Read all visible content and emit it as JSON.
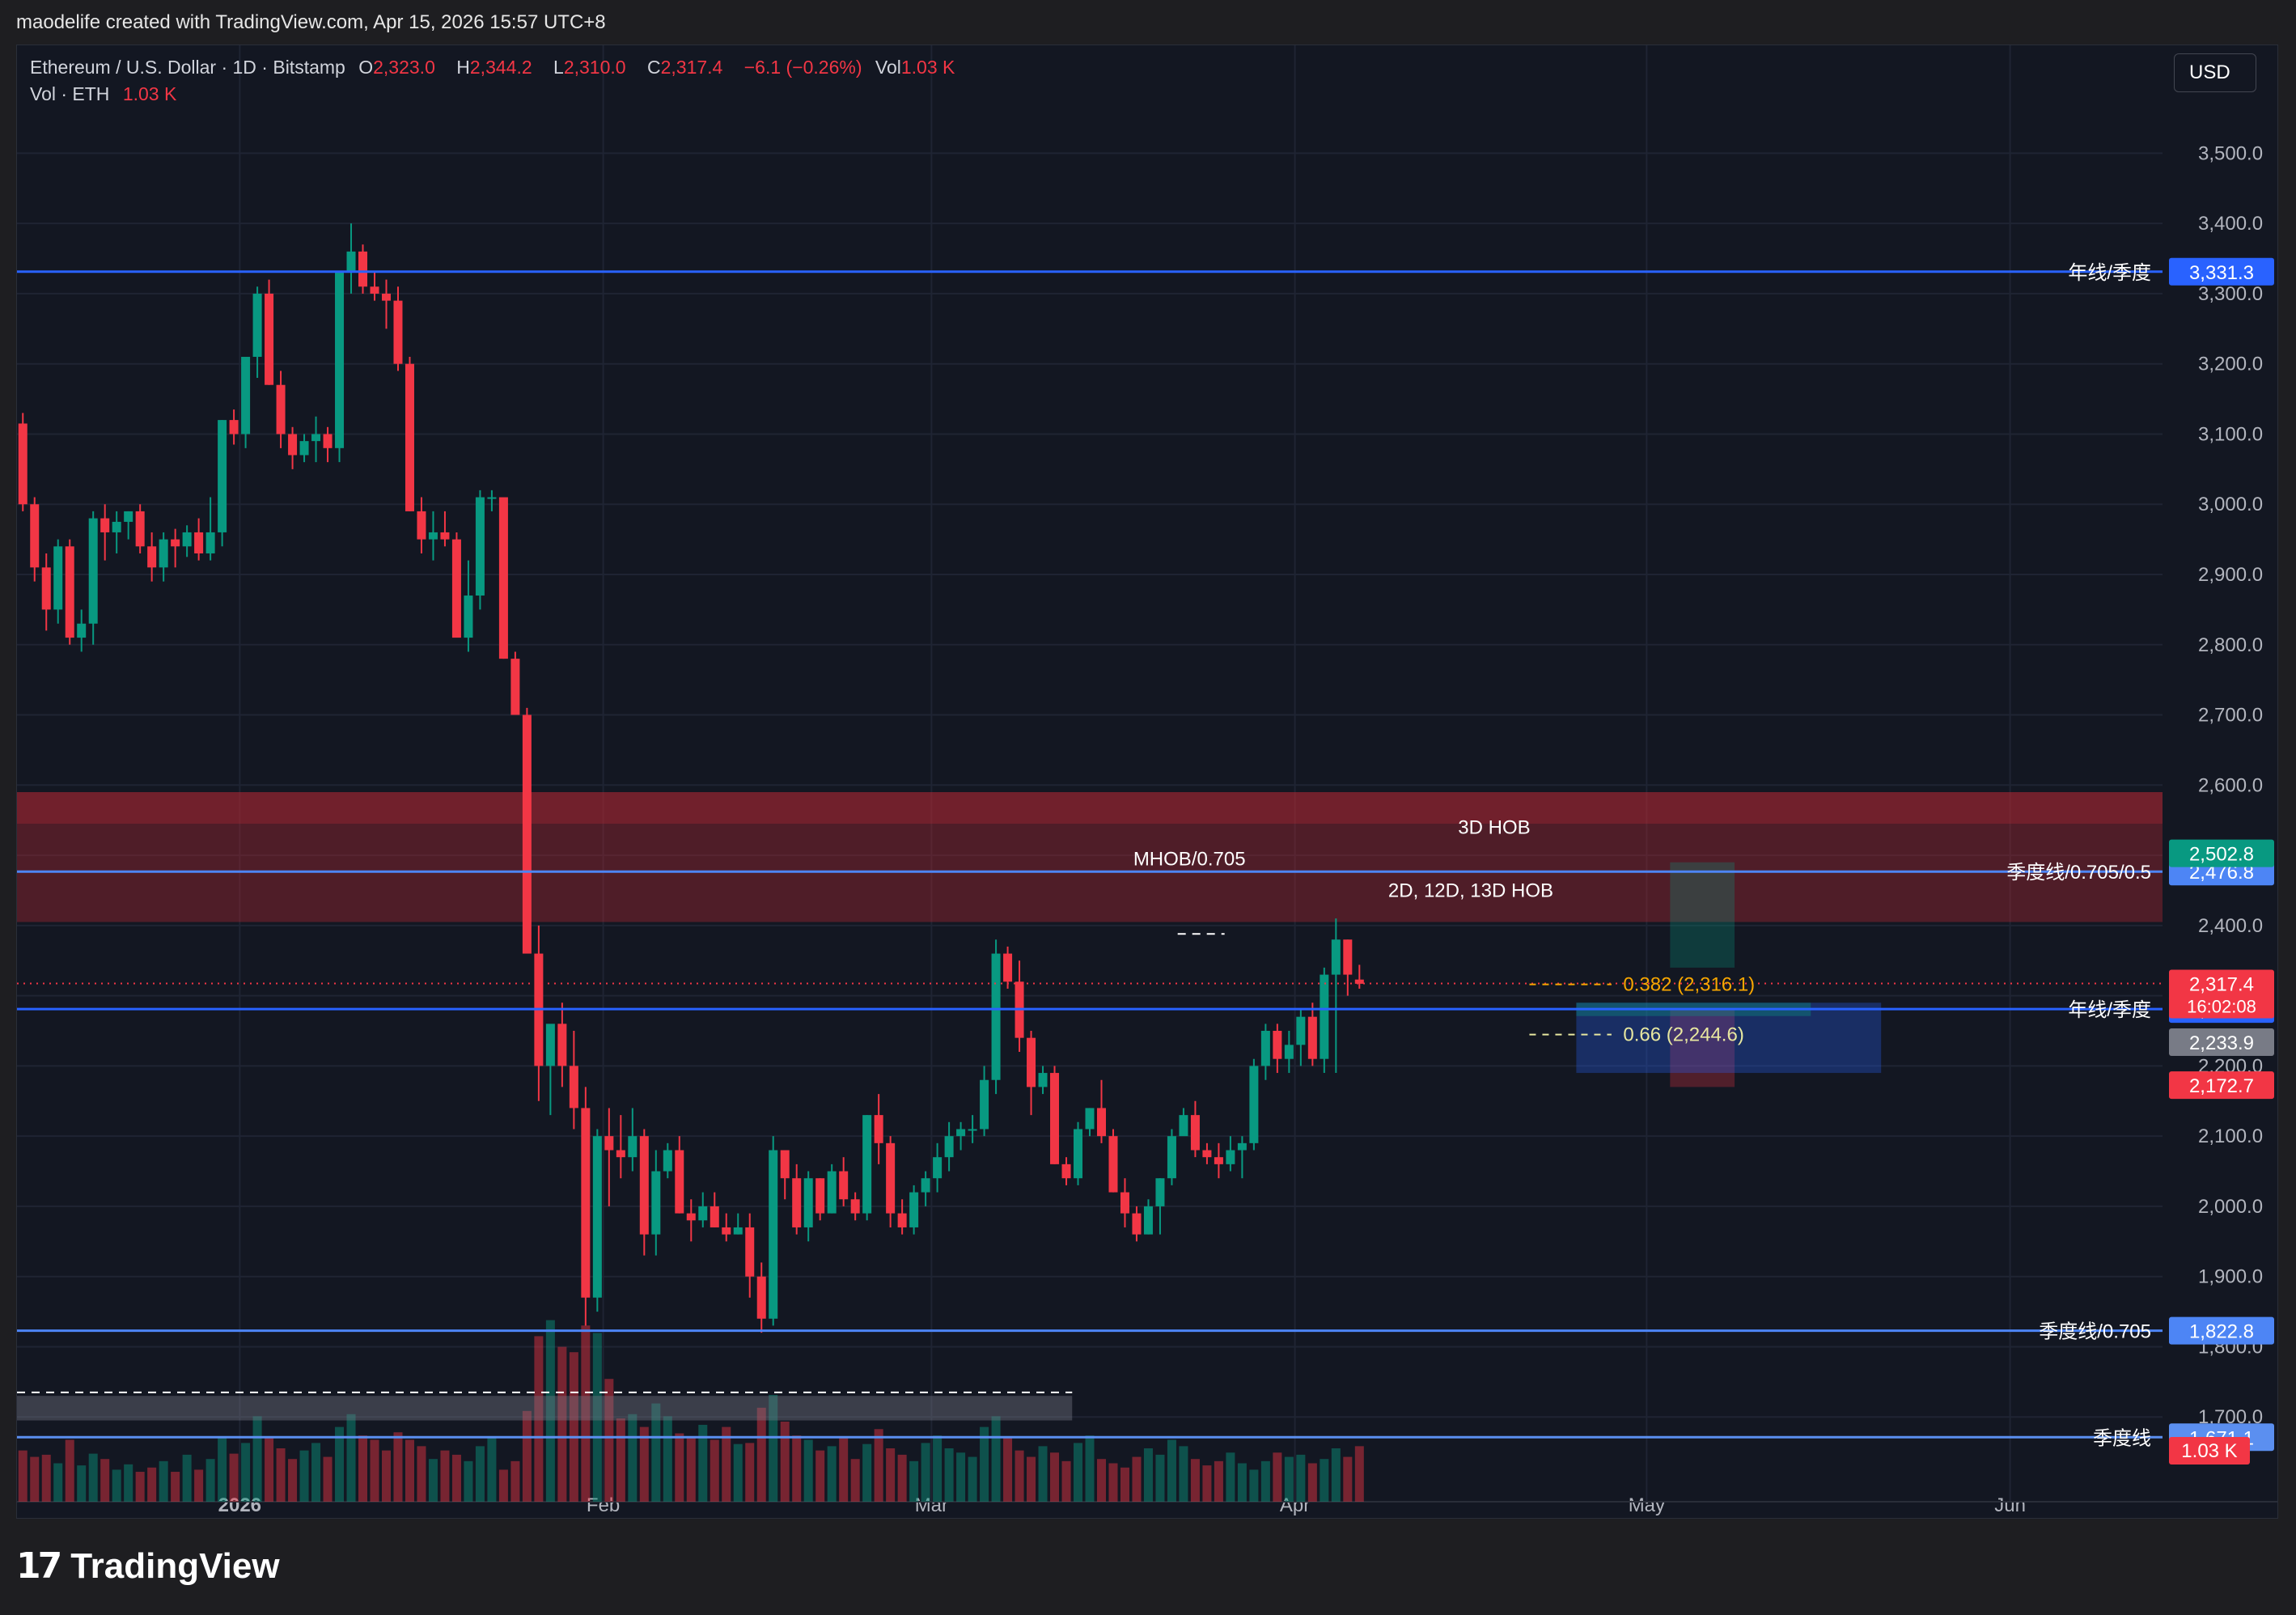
{
  "header": {
    "text": "maodelife created with TradingView.com, Apr 15, 2026 15:57 UTC+8"
  },
  "legend": {
    "symbol": "Ethereum / U.S. Dollar · 1D · Bitstamp",
    "o_label": "O",
    "o_value": "2,323.0",
    "h_label": "H",
    "h_value": "2,344.2",
    "l_label": "L",
    "l_value": "2,310.0",
    "c_label": "C",
    "c_value": "2,317.4",
    "change": "−6.1 (−0.26%)",
    "vol_label": "Vol",
    "vol_value": "1.03 K",
    "vol_row_label": "Vol · ETH",
    "vol_row_value": "1.03 K"
  },
  "currency_button": "USD",
  "footer": {
    "brand": "TradingView"
  },
  "colors": {
    "background": "#131722",
    "up": "#089981",
    "down": "#f23645",
    "blue_line": "#2962ff",
    "zone": "#b22833"
  },
  "chart_data": {
    "type": "candlestick",
    "symbol": "ETHUSD",
    "timeframe": "1D",
    "ylim": [
      1600,
      3550
    ],
    "y_ticks": [
      "3,500.0",
      "3,400.0",
      "3,300.0",
      "3,200.0",
      "3,100.0",
      "3,000.0",
      "2,900.0",
      "2,800.0",
      "2,700.0",
      "2,600.0",
      "2,500.0",
      "2,400.0",
      "2,300.0",
      "2,200.0",
      "2,100.0",
      "2,000.0",
      "1,900.0",
      "1,800.0",
      "1,700.0"
    ],
    "x_ticks": [
      {
        "label": "2026",
        "day": 0
      },
      {
        "label": "Feb",
        "day": 31
      },
      {
        "label": "Mar",
        "day": 59
      },
      {
        "label": "Apr",
        "day": 90
      },
      {
        "label": "May",
        "day": 120
      },
      {
        "label": "Jun",
        "day": 151
      }
    ],
    "first_day": -19,
    "last_day": 164,
    "candles": [
      [
        3115,
        3130,
        2990,
        3000
      ],
      [
        3000,
        3010,
        2890,
        2910
      ],
      [
        2910,
        2930,
        2820,
        2850
      ],
      [
        2850,
        2950,
        2830,
        2940
      ],
      [
        2940,
        2950,
        2800,
        2810
      ],
      [
        2810,
        2850,
        2790,
        2830
      ],
      [
        2830,
        2990,
        2800,
        2980
      ],
      [
        2980,
        3000,
        2920,
        2960
      ],
      [
        2960,
        2990,
        2930,
        2975
      ],
      [
        2975,
        2990,
        2950,
        2990
      ],
      [
        2990,
        3000,
        2930,
        2940
      ],
      [
        2940,
        2960,
        2890,
        2910
      ],
      [
        2910,
        2960,
        2890,
        2950
      ],
      [
        2950,
        2965,
        2910,
        2940
      ],
      [
        2940,
        2970,
        2925,
        2960
      ],
      [
        2960,
        2980,
        2920,
        2930
      ],
      [
        2930,
        3010,
        2920,
        2960
      ],
      [
        2960,
        3120,
        2940,
        3120
      ],
      [
        3120,
        3135,
        3085,
        3100
      ],
      [
        3100,
        3200,
        3080,
        3210
      ],
      [
        3210,
        3310,
        3180,
        3300
      ],
      [
        3300,
        3320,
        3170,
        3170
      ],
      [
        3170,
        3190,
        3080,
        3100
      ],
      [
        3100,
        3110,
        3050,
        3070
      ],
      [
        3070,
        3100,
        3060,
        3090
      ],
      [
        3090,
        3125,
        3060,
        3100
      ],
      [
        3100,
        3110,
        3060,
        3080
      ],
      [
        3080,
        3330,
        3060,
        3330
      ],
      [
        3330,
        3400,
        3300,
        3360
      ],
      [
        3360,
        3370,
        3300,
        3310
      ],
      [
        3310,
        3330,
        3290,
        3300
      ],
      [
        3300,
        3320,
        3250,
        3290
      ],
      [
        3290,
        3310,
        3190,
        3200
      ],
      [
        3200,
        3210,
        2990,
        2990
      ],
      [
        2990,
        3010,
        2930,
        2950
      ],
      [
        2950,
        2990,
        2920,
        2960
      ],
      [
        2960,
        2990,
        2940,
        2950
      ],
      [
        2950,
        2960,
        2820,
        2810
      ],
      [
        2810,
        2920,
        2790,
        2870
      ],
      [
        2870,
        3020,
        2850,
        3010
      ],
      [
        3010,
        3020,
        2990,
        3010
      ],
      [
        3010,
        3000,
        2780,
        2780
      ],
      [
        2780,
        2790,
        2700,
        2700
      ],
      [
        2700,
        2710,
        2360,
        2360
      ],
      [
        2360,
        2400,
        2150,
        2200
      ],
      [
        2200,
        2250,
        2130,
        2260
      ],
      [
        2260,
        2290,
        2170,
        2200
      ],
      [
        2200,
        2250,
        2110,
        2140
      ],
      [
        2140,
        2170,
        1830,
        1870
      ],
      [
        1870,
        2110,
        1850,
        2100
      ],
      [
        2100,
        2140,
        2000,
        2080
      ],
      [
        2080,
        2130,
        2040,
        2070
      ],
      [
        2070,
        2140,
        2050,
        2100
      ],
      [
        2100,
        2110,
        1930,
        1960
      ],
      [
        1960,
        2080,
        1930,
        2050
      ],
      [
        2050,
        2090,
        2040,
        2080
      ],
      [
        2080,
        2100,
        1990,
        1990
      ],
      [
        1990,
        2010,
        1950,
        1980
      ],
      [
        1980,
        2020,
        1970,
        2000
      ],
      [
        2000,
        2020,
        1970,
        1970
      ],
      [
        1970,
        1990,
        1950,
        1960
      ],
      [
        1960,
        1990,
        1960,
        1970
      ],
      [
        1970,
        1990,
        1870,
        1900
      ],
      [
        1900,
        1920,
        1820,
        1840
      ],
      [
        1840,
        2100,
        1830,
        2080
      ],
      [
        2080,
        2080,
        2010,
        2040
      ],
      [
        2040,
        2060,
        1960,
        1970
      ],
      [
        1970,
        2050,
        1950,
        2040
      ],
      [
        2040,
        2040,
        1980,
        1990
      ],
      [
        1990,
        2060,
        1990,
        2050
      ],
      [
        2050,
        2070,
        2000,
        2010
      ],
      [
        2010,
        2020,
        1980,
        1990
      ],
      [
        1990,
        2130,
        1980,
        2130
      ],
      [
        2130,
        2160,
        2060,
        2090
      ],
      [
        2090,
        2100,
        1970,
        1990
      ],
      [
        1990,
        2010,
        1960,
        1970
      ],
      [
        1970,
        2030,
        1960,
        2020
      ],
      [
        2020,
        2050,
        2000,
        2040
      ],
      [
        2040,
        2090,
        2020,
        2070
      ],
      [
        2070,
        2120,
        2050,
        2100
      ],
      [
        2100,
        2120,
        2080,
        2110
      ],
      [
        2110,
        2130,
        2090,
        2110
      ],
      [
        2110,
        2200,
        2100,
        2180
      ],
      [
        2180,
        2380,
        2160,
        2360
      ],
      [
        2360,
        2370,
        2310,
        2320
      ],
      [
        2320,
        2350,
        2220,
        2240
      ],
      [
        2240,
        2250,
        2130,
        2170
      ],
      [
        2170,
        2200,
        2160,
        2190
      ],
      [
        2190,
        2200,
        2060,
        2060
      ],
      [
        2060,
        2070,
        2030,
        2040
      ],
      [
        2040,
        2120,
        2030,
        2110
      ],
      [
        2110,
        2140,
        2100,
        2140
      ],
      [
        2140,
        2180,
        2090,
        2100
      ],
      [
        2100,
        2110,
        2020,
        2020
      ],
      [
        2020,
        2040,
        1970,
        1990
      ],
      [
        1990,
        2000,
        1950,
        1960
      ],
      [
        1960,
        2010,
        1960,
        2000
      ],
      [
        2000,
        2040,
        1960,
        2040
      ],
      [
        2040,
        2110,
        2030,
        2100
      ],
      [
        2100,
        2140,
        2110,
        2130
      ],
      [
        2130,
        2150,
        2070,
        2080
      ],
      [
        2080,
        2090,
        2060,
        2070
      ],
      [
        2070,
        2090,
        2040,
        2060
      ],
      [
        2060,
        2100,
        2050,
        2080
      ],
      [
        2080,
        2100,
        2040,
        2090
      ],
      [
        2090,
        2210,
        2080,
        2200
      ],
      [
        2200,
        2260,
        2180,
        2250
      ],
      [
        2250,
        2260,
        2190,
        2210
      ],
      [
        2210,
        2250,
        2190,
        2230
      ],
      [
        2230,
        2280,
        2200,
        2270
      ],
      [
        2270,
        2290,
        2200,
        2210
      ],
      [
        2210,
        2340,
        2190,
        2330
      ],
      [
        2330,
        2410,
        2190,
        2380
      ],
      [
        2380,
        2380,
        2300,
        2330
      ],
      [
        2323,
        2344,
        2310,
        2317
      ]
    ],
    "volume": [
      48,
      42,
      44,
      36,
      58,
      34,
      45,
      40,
      30,
      35,
      28,
      32,
      38,
      28,
      44,
      30,
      40,
      60,
      45,
      55,
      80,
      60,
      50,
      40,
      48,
      55,
      42,
      70,
      82,
      62,
      58,
      48,
      65,
      58,
      52,
      40,
      48,
      44,
      38,
      52,
      60,
      30,
      38,
      85,
      155,
      170,
      145,
      140,
      165,
      158,
      115,
      78,
      82,
      70,
      92,
      80,
      64,
      60,
      72,
      58,
      70,
      54,
      55,
      88,
      100,
      75,
      62,
      58,
      48,
      52,
      60,
      40,
      54,
      68,
      50,
      44,
      38,
      55,
      62,
      50,
      46,
      42,
      70,
      80,
      60,
      48,
      42,
      52,
      46,
      38,
      55,
      62,
      40,
      36,
      32,
      42,
      50,
      44,
      58,
      52,
      40,
      34,
      38,
      46,
      36,
      30,
      38,
      46,
      42,
      44,
      36,
      40,
      50,
      42,
      52
    ],
    "vol_ylim": [
      0,
      300
    ],
    "levels": [
      {
        "price": 3331.3,
        "label": "年线/季度",
        "tag": "3,331.3",
        "color": "#2962ff"
      },
      {
        "price": 2476.8,
        "label": "季度线/0.705/0.5",
        "tag": "2,476.8",
        "color": "#4d85f5"
      },
      {
        "price": 2281.0,
        "label": "年线/季度",
        "tag": "2,281.0",
        "color": "#2962ff"
      },
      {
        "price": 1822.8,
        "label": "季度线/0.705",
        "tag": "1,822.8",
        "color": "#4d85f5"
      },
      {
        "price": 1671.1,
        "label": "季度线",
        "tag": "1,671.1",
        "color": "#5b8ff0"
      }
    ],
    "price_tags": [
      {
        "price": 2502.8,
        "text": "2,502.8",
        "bg": "#089981"
      },
      {
        "price": 2317.4,
        "text": "2,317.4",
        "sub": "16:02:08",
        "bg": "#f23645"
      },
      {
        "price": 2233.9,
        "text": "2,233.9",
        "bg": "#787b86"
      },
      {
        "price": 2172.7,
        "text": "2,172.7",
        "bg": "#f23645"
      }
    ],
    "volume_tag": "1.03 K",
    "zones": [
      {
        "top": 2590,
        "bottom": 2405,
        "label": "",
        "color": "#b22833"
      }
    ],
    "zone_labels": [
      {
        "text": "3D HOB",
        "price": 2540,
        "day": 107
      },
      {
        "text": "MHOB/0.705",
        "price": 2495,
        "day": 81
      },
      {
        "text": "2D, 12D, 13D HOB",
        "price": 2450,
        "day": 105
      }
    ],
    "fib": [
      {
        "text": "0.382 (2,316.1)",
        "price": 2316.1,
        "color": "#f7a600"
      },
      {
        "text": "0.66 (2,244.6)",
        "price": 2244.6,
        "color": "#e8e8a0"
      }
    ]
  }
}
